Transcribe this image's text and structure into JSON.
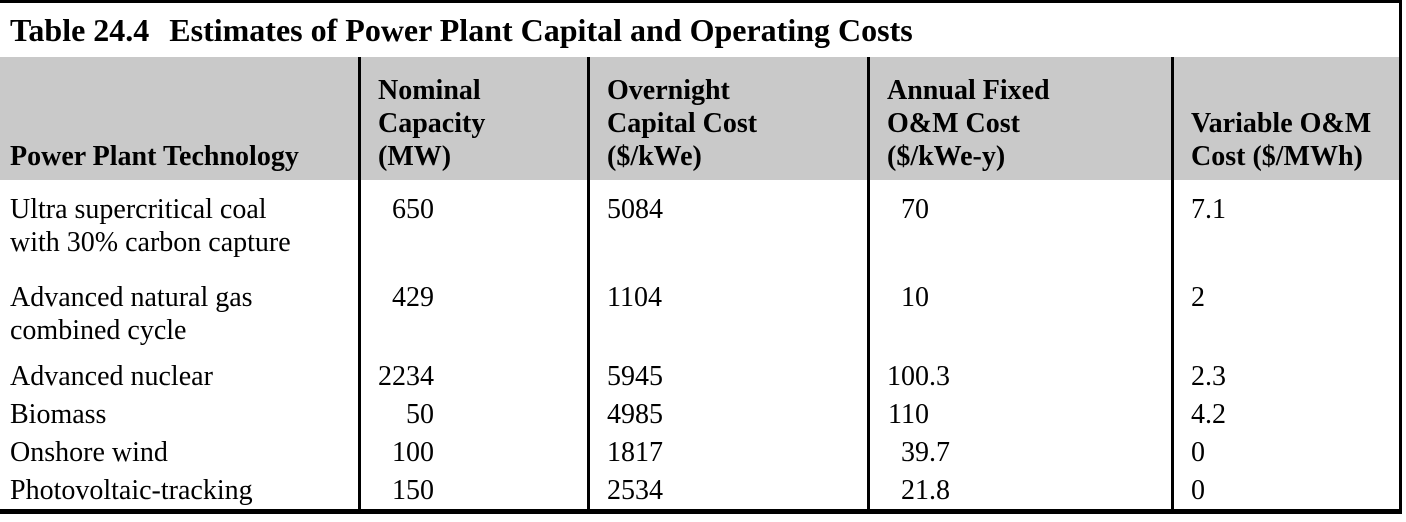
{
  "title": {
    "label": "Table 24.4",
    "caption": "Estimates of Power Plant Capital and Operating Costs"
  },
  "colors": {
    "header_bg": "#c9c9c9",
    "border": "#000000",
    "page_bg": "#ffffff"
  },
  "table": {
    "columns": [
      {
        "header": "Power Plant Technology"
      },
      {
        "header": "Nominal\nCapacity\n(MW)"
      },
      {
        "header": "Overnight\nCapital Cost\n($/kWe)"
      },
      {
        "header": "Annual Fixed\nO&M Cost\n($/kWe-y)"
      },
      {
        "header": "Variable O&M\nCost ($/MWh)"
      }
    ],
    "rows": [
      {
        "technology": "Ultra supercritical coal\nwith 30% carbon capture",
        "capacity_mw": "650",
        "overnight_cost": "5084",
        "fixed_om": "70",
        "variable_om": "7.1"
      },
      {
        "technology": "Advanced natural gas\ncombined cycle",
        "capacity_mw": "429",
        "overnight_cost": "1104",
        "fixed_om": "10",
        "variable_om": "2"
      },
      {
        "technology": "Advanced nuclear",
        "capacity_mw": "2234",
        "overnight_cost": "5945",
        "fixed_om": "100.3",
        "variable_om": "2.3"
      },
      {
        "technology": "Biomass",
        "capacity_mw": "50",
        "overnight_cost": "4985",
        "fixed_om": "110",
        "variable_om": "4.2"
      },
      {
        "technology": "Onshore wind",
        "capacity_mw": "100",
        "overnight_cost": "1817",
        "fixed_om": "39.7",
        "variable_om": "0"
      },
      {
        "technology": "Photovoltaic-tracking",
        "capacity_mw": "150",
        "overnight_cost": "2534",
        "fixed_om": "21.8",
        "variable_om": "0"
      }
    ]
  }
}
